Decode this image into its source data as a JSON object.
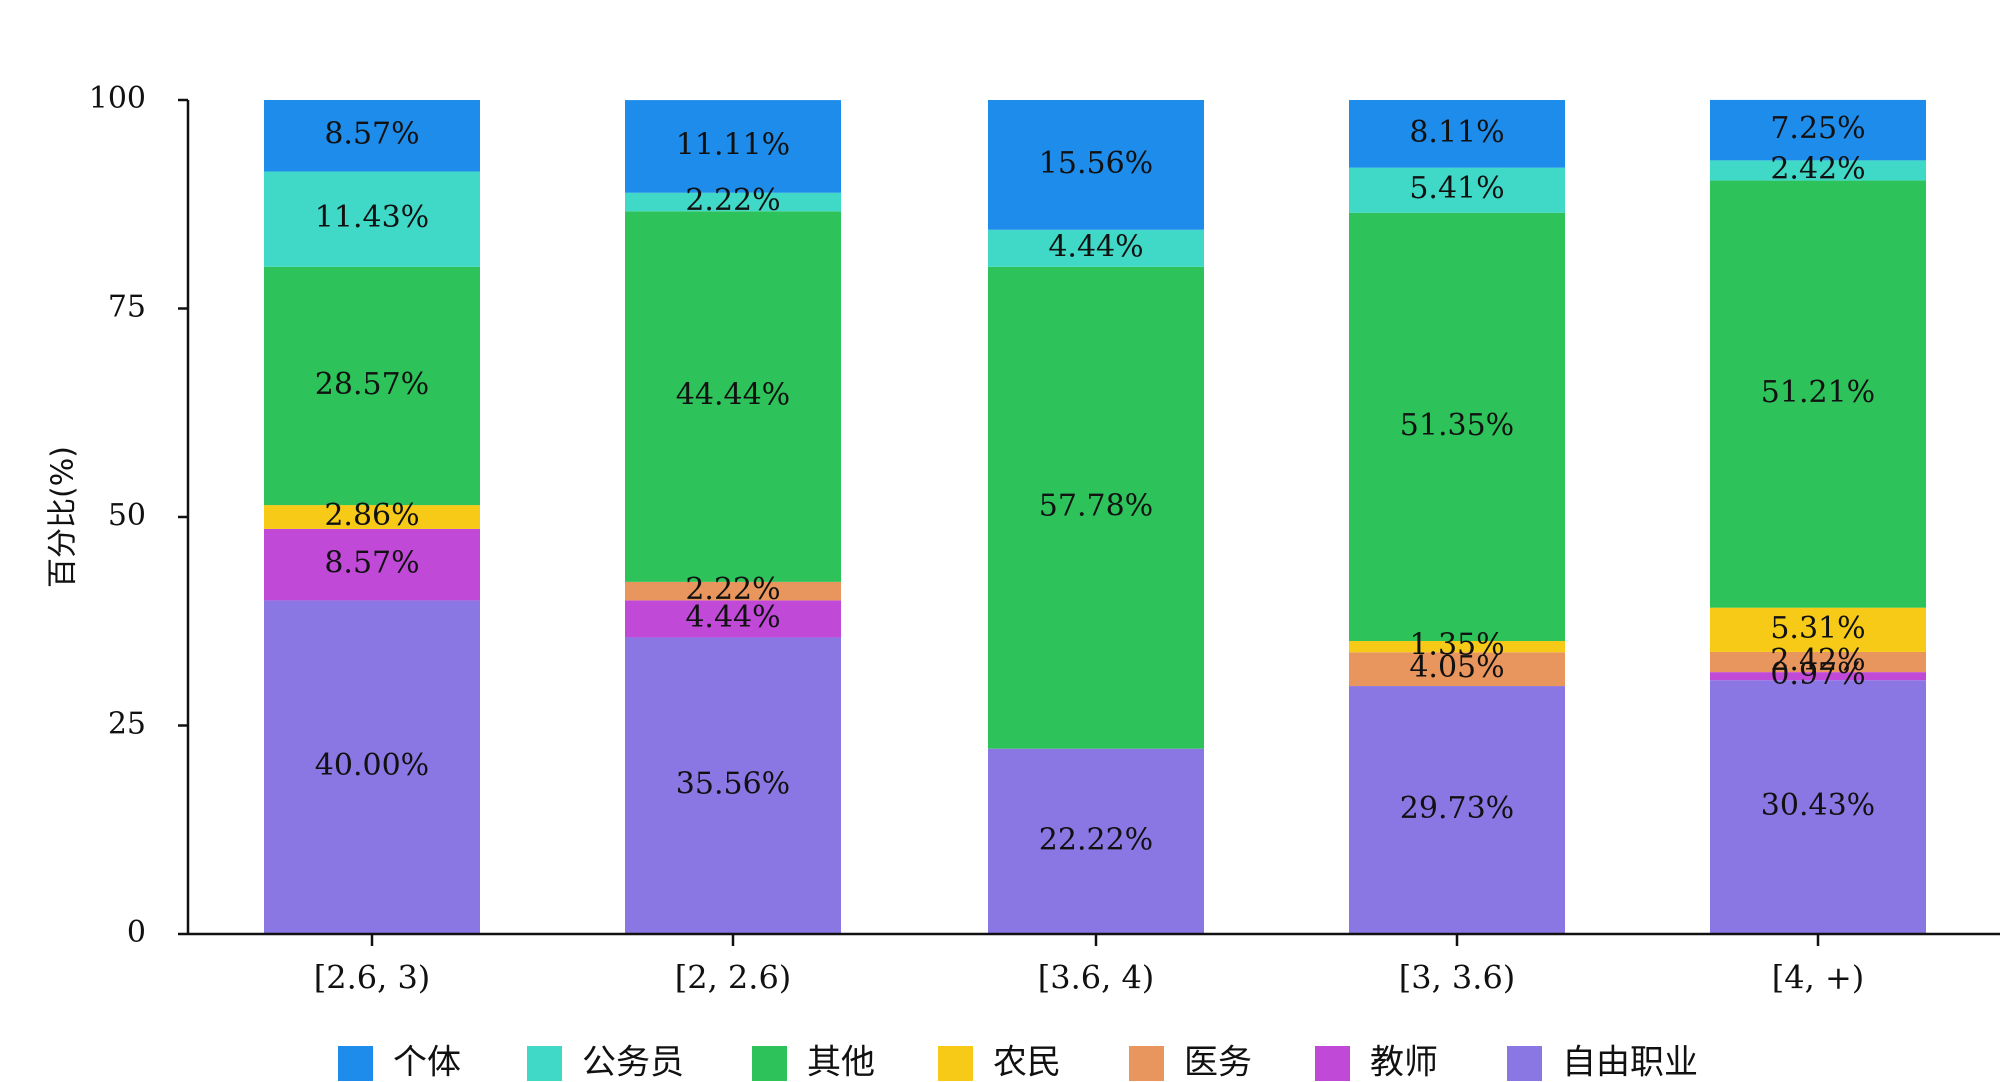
{
  "chart_data": {
    "type": "bar",
    "stacked": true,
    "title": "",
    "xlabel": "",
    "ylabel": "百分比(%)",
    "ylim": [
      0,
      100
    ],
    "yticks": [
      0,
      25,
      50,
      75,
      100
    ],
    "categories": [
      "[2.6, 3)",
      "[2, 2.6)",
      "[3.6, 4)",
      "[3, 3.6)",
      "[4, +)"
    ],
    "legend_position": "bottom",
    "series": [
      {
        "name": "自由职业",
        "color": "#8b77e3",
        "values": [
          40.0,
          35.56,
          22.22,
          29.73,
          30.43
        ],
        "labels": [
          "40.00%",
          "35.56%",
          "22.22%",
          "29.73%",
          "30.43%"
        ]
      },
      {
        "name": "教师",
        "color": "#c149d8",
        "values": [
          8.57,
          4.44,
          0,
          0,
          0.97
        ],
        "labels": [
          "8.57%",
          "4.44%",
          "",
          "",
          "0.97%"
        ]
      },
      {
        "name": "医务",
        "color": "#e8955e",
        "values": [
          0,
          2.22,
          0,
          4.05,
          2.42
        ],
        "labels": [
          "",
          "2.22%",
          "",
          "4.05%",
          "2.42%"
        ]
      },
      {
        "name": "农民",
        "color": "#f7ca17",
        "values": [
          2.86,
          0,
          0,
          1.35,
          5.31
        ],
        "labels": [
          "2.86%",
          "",
          "",
          "1.35%",
          "5.31%"
        ]
      },
      {
        "name": "其他",
        "color": "#2dc35a",
        "values": [
          28.57,
          44.44,
          57.78,
          51.35,
          51.21
        ],
        "labels": [
          "28.57%",
          "44.44%",
          "57.78%",
          "51.35%",
          "51.21%"
        ]
      },
      {
        "name": "公务员",
        "color": "#40d9c7",
        "values": [
          11.43,
          2.22,
          4.44,
          5.41,
          2.42
        ],
        "labels": [
          "11.43%",
          "2.22%",
          "4.44%",
          "5.41%",
          "2.42%"
        ]
      },
      {
        "name": "个体",
        "color": "#1e8ceb",
        "values": [
          8.57,
          11.11,
          15.56,
          8.11,
          7.25
        ],
        "labels": [
          "8.57%",
          "11.11%",
          "15.56%",
          "8.11%",
          "7.25%"
        ]
      }
    ],
    "legend_order": [
      "个体",
      "公务员",
      "其他",
      "农民",
      "医务",
      "教师",
      "自由职业"
    ]
  }
}
